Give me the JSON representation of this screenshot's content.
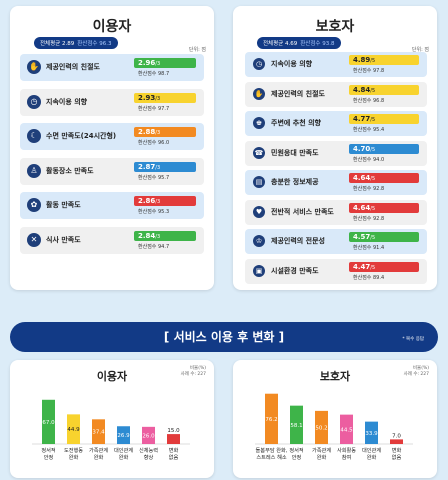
{
  "user_panel": {
    "title": "이용자",
    "avg_label": "전체평균 2.89",
    "avg_conv": "환산점수 96.3",
    "unit": "단위: 점",
    "items": [
      {
        "icon": "handshake-icon",
        "glyph": "✋",
        "label": "제공인력의 친절도",
        "score": "2.96",
        "max": "/3",
        "conv": "환산점수 98.7",
        "color": "#3eb449",
        "bg": "blue"
      },
      {
        "icon": "clock-icon",
        "glyph": "◷",
        "label": "지속이용 의향",
        "score": "2.93",
        "max": "/3",
        "conv": "환산점수 97.7",
        "color": "#f8d32e",
        "bg": "gray"
      },
      {
        "icon": "moon-icon",
        "glyph": "☾",
        "label": "수면 만족도(24시간형)",
        "score": "2.88",
        "max": "/3",
        "conv": "환산점수 96.0",
        "color": "#f28a22",
        "bg": "blue"
      },
      {
        "icon": "person-icon",
        "glyph": "♙",
        "label": "활동장소 만족도",
        "score": "2.87",
        "max": "/3",
        "conv": "환산점수 95.7",
        "color": "#2d8bd2",
        "bg": "gray"
      },
      {
        "icon": "activity-icon",
        "glyph": "✿",
        "label": "활동 만족도",
        "score": "2.86",
        "max": "/3",
        "conv": "환산점수 95.3",
        "color": "#e23b3b",
        "bg": "blue"
      },
      {
        "icon": "meal-icon",
        "glyph": "✕",
        "label": "식사 만족도",
        "score": "2.84",
        "max": "/3",
        "conv": "환산점수 94.7",
        "color": "#3eb449",
        "bg": "gray"
      }
    ]
  },
  "guardian_panel": {
    "title": "보호자",
    "avg_label": "전체평균 4.69",
    "avg_conv": "환산점수 93.8",
    "unit": "단위: 점",
    "items": [
      {
        "icon": "clock-icon",
        "glyph": "◷",
        "label": "지속이용 의향",
        "score": "4.89",
        "max": "/5",
        "conv": "환산점수 97.8",
        "color": "#f8d32e",
        "bg": "blue"
      },
      {
        "icon": "handshake-icon",
        "glyph": "✋",
        "label": "제공인력의 친절도",
        "score": "4.84",
        "max": "/5",
        "conv": "환산점수 96.8",
        "color": "#f8d32e",
        "bg": "gray"
      },
      {
        "icon": "recommend-icon",
        "glyph": "♚",
        "label": "주변에 추천 의향",
        "score": "4.77",
        "max": "/5",
        "conv": "환산점수 95.4",
        "color": "#f8d32e",
        "bg": "blue"
      },
      {
        "icon": "phone-icon",
        "glyph": "☎",
        "label": "민원응대 만족도",
        "score": "4.70",
        "max": "/5",
        "conv": "환산점수 94.0",
        "color": "#2d8bd2",
        "bg": "gray"
      },
      {
        "icon": "info-icon",
        "glyph": "▤",
        "label": "충분한 정보제공",
        "score": "4.64",
        "max": "/5",
        "conv": "환산점수 92.8",
        "color": "#e23b3b",
        "bg": "blue"
      },
      {
        "icon": "service-icon",
        "glyph": "♥",
        "label": "전반적 서비스 만족도",
        "score": "4.64",
        "max": "/5",
        "conv": "환산점수 92.8",
        "color": "#e23b3b",
        "bg": "gray"
      },
      {
        "icon": "expert-icon",
        "glyph": "♔",
        "label": "제공인력의 전문성",
        "score": "4.57",
        "max": "/5",
        "conv": "환산점수 91.4",
        "color": "#3eb449",
        "bg": "blue"
      },
      {
        "icon": "building-icon",
        "glyph": "▣",
        "label": "시설환경 만족도",
        "score": "4.47",
        "max": "/5",
        "conv": "환산점수 89.4",
        "color": "#e23b3b",
        "bg": "gray"
      }
    ]
  },
  "change_section": {
    "title": "[ 서비스 이용 후 변화 ]",
    "note": "* 복수 응답"
  },
  "chart_data": [
    {
      "type": "bar",
      "title": "이용자",
      "unit_lines": [
        "비율(%)",
        "사례 수: 227"
      ],
      "categories": [
        [
          "정서적",
          "안정"
        ],
        [
          "도전행동",
          "완화"
        ],
        [
          "가족관계",
          "완화"
        ],
        [
          "대인관계",
          "완화"
        ],
        [
          "신체능력",
          "향상"
        ],
        [
          "변화",
          "없음"
        ]
      ],
      "values": [
        67.0,
        44.9,
        37.4,
        26.9,
        26.0,
        15.0
      ],
      "labels": [
        "67.0",
        "44.9",
        "37.4",
        "26.9",
        "26.0",
        "15.0"
      ],
      "colors": [
        "#3eb449",
        "#f8d32e",
        "#f28a22",
        "#2d8bd2",
        "#ec5ea0",
        "#e23b3b"
      ],
      "ylim": [
        0,
        100
      ]
    },
    {
      "type": "bar",
      "title": "보호자",
      "unit_lines": [
        "비율(%)",
        "사례 수: 227"
      ],
      "categories": [
        [
          "돌봄부담 완화,",
          "스트레스 해소"
        ],
        [
          "정서적",
          "안정"
        ],
        [
          "가족관계",
          "완화"
        ],
        [
          "사회활동",
          "참여"
        ],
        [
          "대인관계",
          "완화"
        ],
        [
          "변화",
          "없음"
        ]
      ],
      "values": [
        76.2,
        58.1,
        50.2,
        44.5,
        33.9,
        7.0
      ],
      "labels": [
        "76.2",
        "58.1",
        "50.2",
        "44.5",
        "33.9",
        "7.0"
      ],
      "colors": [
        "#f28a22",
        "#3eb449",
        "#f28a22",
        "#ec5ea0",
        "#2d8bd2",
        "#e23b3b"
      ],
      "ylim": [
        0,
        100
      ]
    }
  ]
}
